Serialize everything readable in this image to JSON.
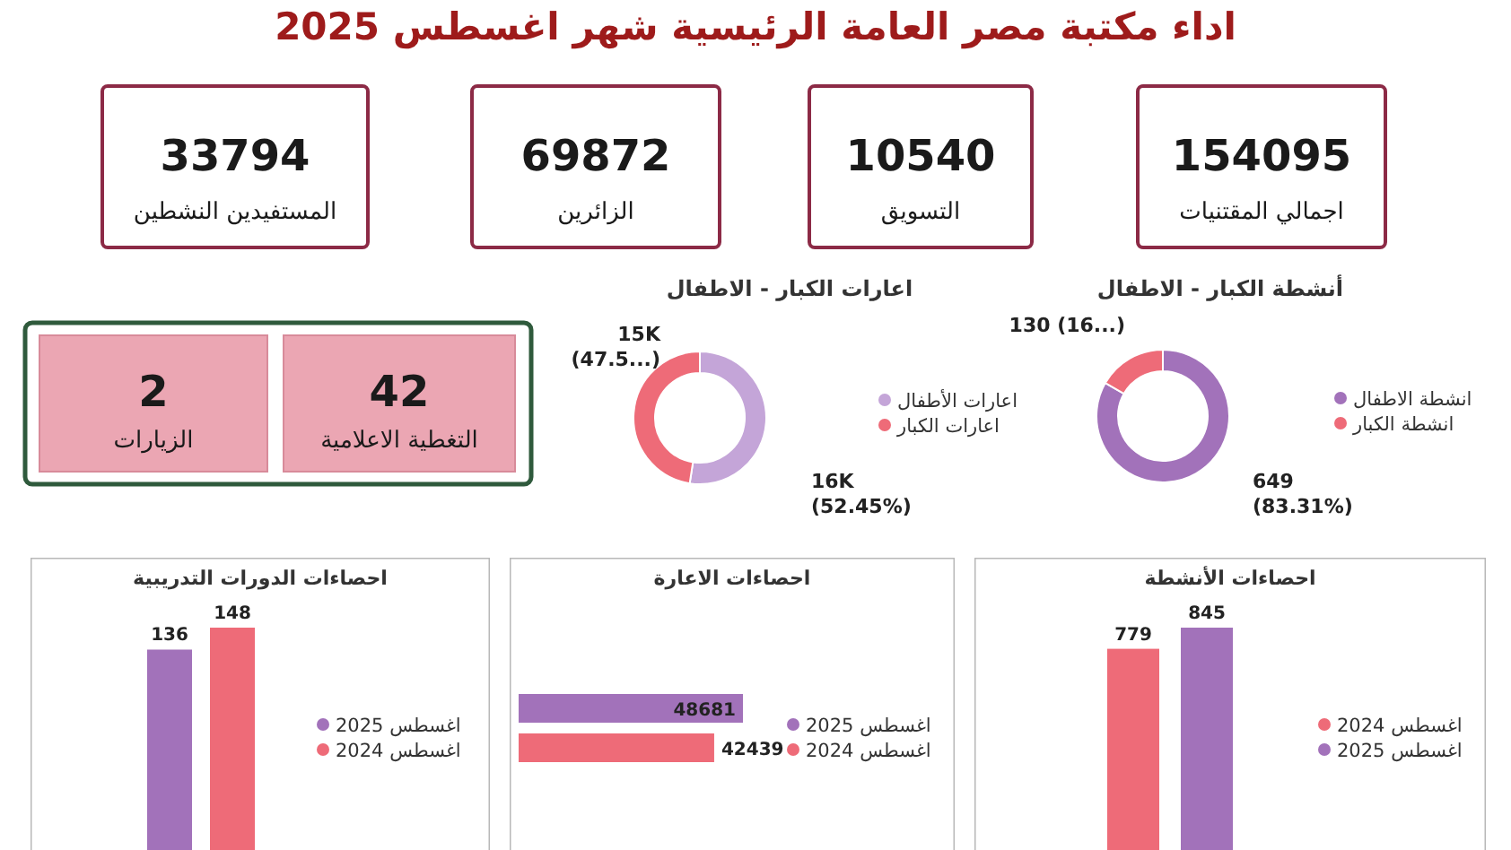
{
  "chart_data": [
    {
      "type": "other",
      "title": "اداء مكتبة مصر العامة الرئيسية شهر اغسطس 2025",
      "categories": [
        "المستفيدين النشطين",
        "الزائرين",
        "التسويق",
        "اجمالي المقتنيات"
      ],
      "values": [
        33794,
        69872,
        10540,
        154095
      ],
      "data_labels": true
    },
    {
      "type": "other",
      "categories": [
        "الزيارات",
        "التغطية الاعلامية"
      ],
      "values": [
        2,
        42
      ],
      "data_labels": true
    },
    {
      "type": "donut",
      "title": "اعارات الكبار - الاطفال",
      "categories": [
        "اعارات الأطفال",
        "اعارات الكبار"
      ],
      "values": [
        52.45,
        47.55
      ],
      "colors": [
        "#c4a5d8",
        "#ee6b78"
      ],
      "value_labels": [
        "16K (52.45%)",
        "15K (47.5...)"
      ],
      "legend": "right"
    },
    {
      "type": "donut",
      "title": "أنشطة الكبار - الاطفال",
      "categories": [
        "انشطة الاطفال",
        "انشطة الكبار"
      ],
      "values": [
        649,
        130
      ],
      "colors": [
        "#a272ba",
        "#ee6b78"
      ],
      "value_labels": [
        "649 (83.31%)",
        "130 (16...)"
      ],
      "legend": "right"
    },
    {
      "type": "bar",
      "title": "احصاءات الدورات التدريبية",
      "categories": [
        null
      ],
      "series": [
        {
          "name": "اغسطس 2025",
          "color": "#a272ba",
          "values": [
            136
          ]
        },
        {
          "name": "اغسطس 2024",
          "color": "#ee6b78",
          "values": [
            148
          ]
        }
      ],
      "data_labels": true,
      "legend": "right"
    },
    {
      "type": "bar",
      "title": "احصاءات الاعارة",
      "orientation": "horizontal",
      "categories": [
        null
      ],
      "series": [
        {
          "name": "اغسطس 2025",
          "color": "#a272ba",
          "values": [
            48681
          ]
        },
        {
          "name": "اغسطس 2024",
          "color": "#ee6b78",
          "values": [
            42439
          ]
        }
      ],
      "data_labels": true,
      "legend": "right"
    },
    {
      "type": "bar",
      "title": "احصاءات الأنشطة",
      "categories": [
        null
      ],
      "series": [
        {
          "name": "اغسطس 2024",
          "color": "#ee6b78",
          "values": [
            779
          ]
        },
        {
          "name": "اغسطس 2025",
          "color": "#a272ba",
          "values": [
            845
          ]
        }
      ],
      "data_labels": true,
      "legend": "right"
    }
  ]
}
